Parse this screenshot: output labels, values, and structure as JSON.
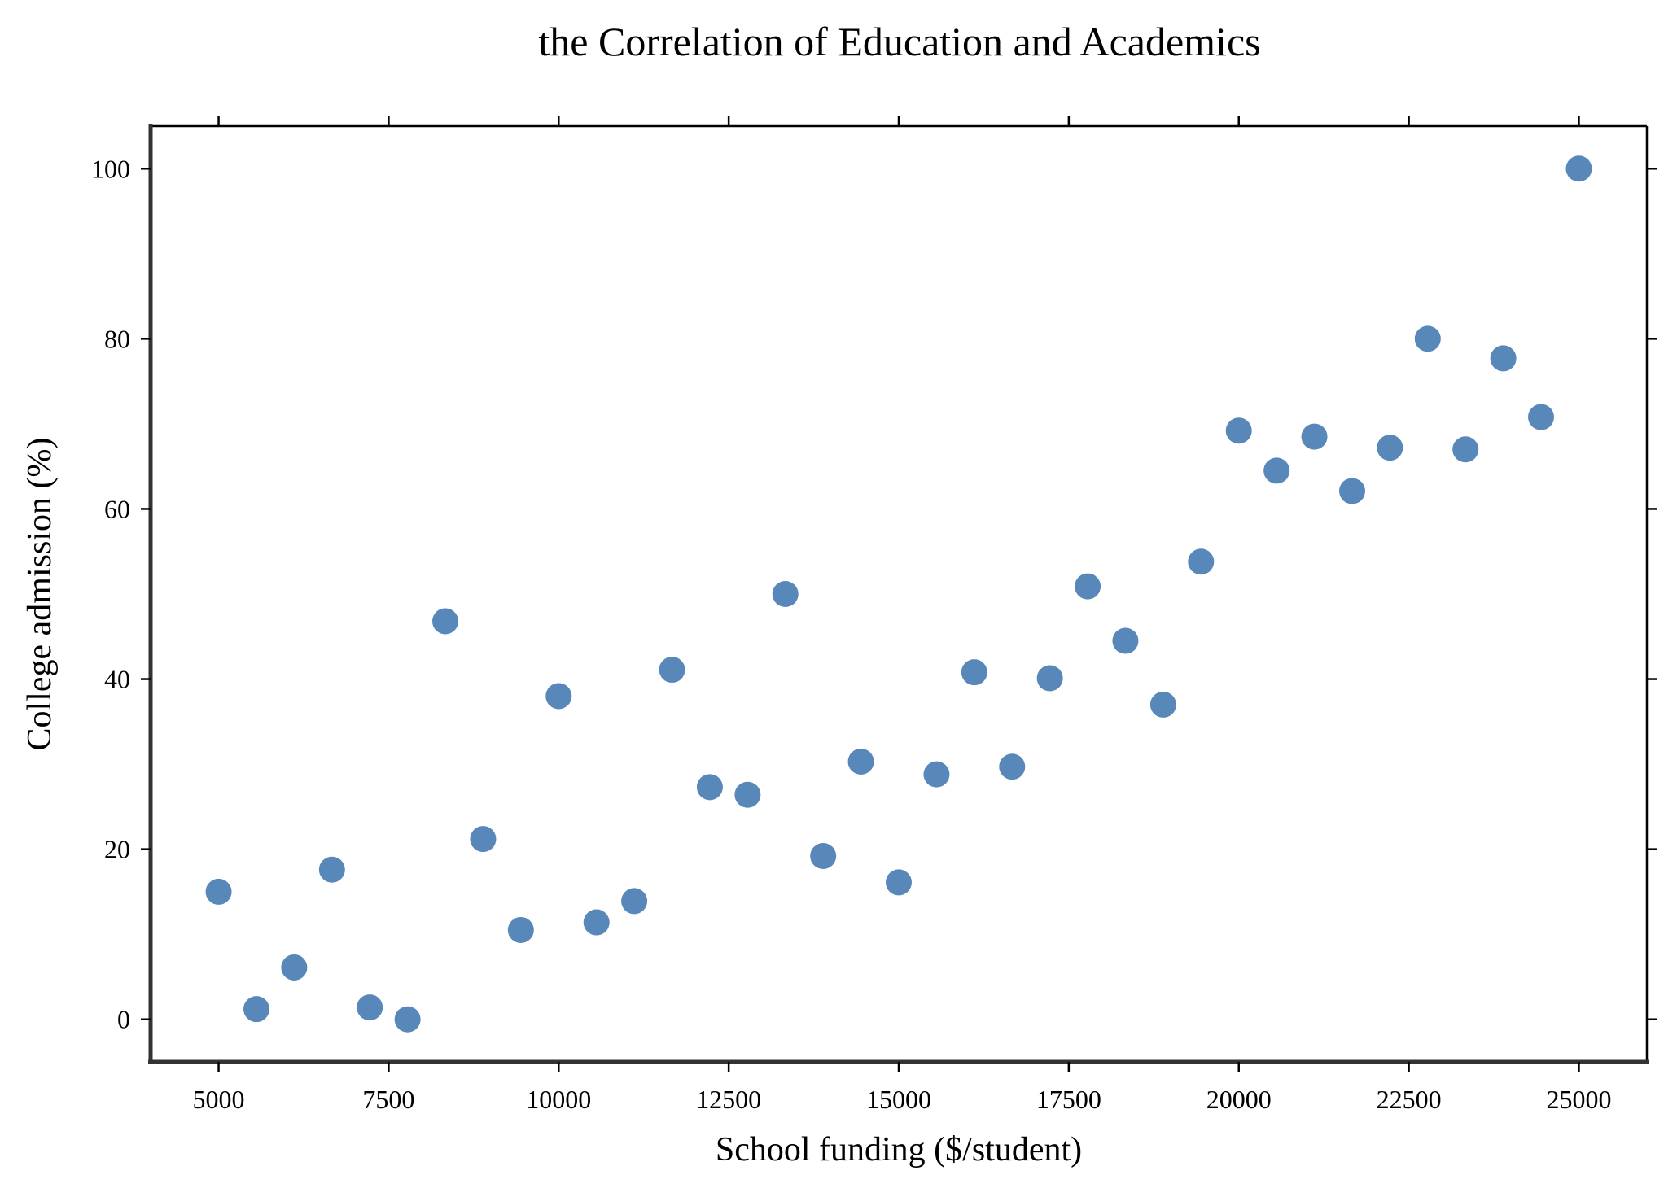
{
  "chart_data": {
    "type": "scatter",
    "title": "the Correlation of Education and Academics",
    "xlabel": "School funding ($/student)",
    "ylabel": "College admission (%)",
    "xlim": [
      4000,
      26000
    ],
    "ylim": [
      -5,
      105
    ],
    "xticks": [
      5000,
      7500,
      10000,
      12500,
      15000,
      17500,
      20000,
      22500,
      25000
    ],
    "xtick_labels": [
      "5000",
      "7500",
      "10000",
      "12500",
      "15000",
      "17500",
      "20000",
      "22500",
      "25000"
    ],
    "yticks": [
      0,
      20,
      40,
      60,
      80,
      100
    ],
    "ytick_labels": [
      "0",
      "20",
      "40",
      "60",
      "80",
      "100"
    ],
    "grid": false,
    "marker_color": "#4f81b5",
    "series": [
      {
        "x": [
          5000,
          5556,
          6111,
          6667,
          7222,
          7778,
          8333,
          8889,
          9444,
          10000,
          10556,
          11111,
          11667,
          12222,
          12778,
          13333,
          13889,
          14444,
          15000,
          15556,
          16111,
          16667,
          17222,
          17778,
          18333,
          18889,
          19444,
          20000,
          20556,
          21111,
          21667,
          22222,
          22778,
          23333,
          23889,
          24444,
          25000
        ],
        "y": [
          15.0,
          1.2,
          6.1,
          17.6,
          1.4,
          0.0,
          46.8,
          21.2,
          10.5,
          38.0,
          11.4,
          13.9,
          41.1,
          27.3,
          26.4,
          50.0,
          19.2,
          30.3,
          16.1,
          28.8,
          40.8,
          29.7,
          40.1,
          50.9,
          44.5,
          37.0,
          53.8,
          69.2,
          64.5,
          68.5,
          62.1,
          67.2,
          80.0,
          67.0,
          77.7,
          70.8,
          100.0
        ]
      }
    ]
  }
}
